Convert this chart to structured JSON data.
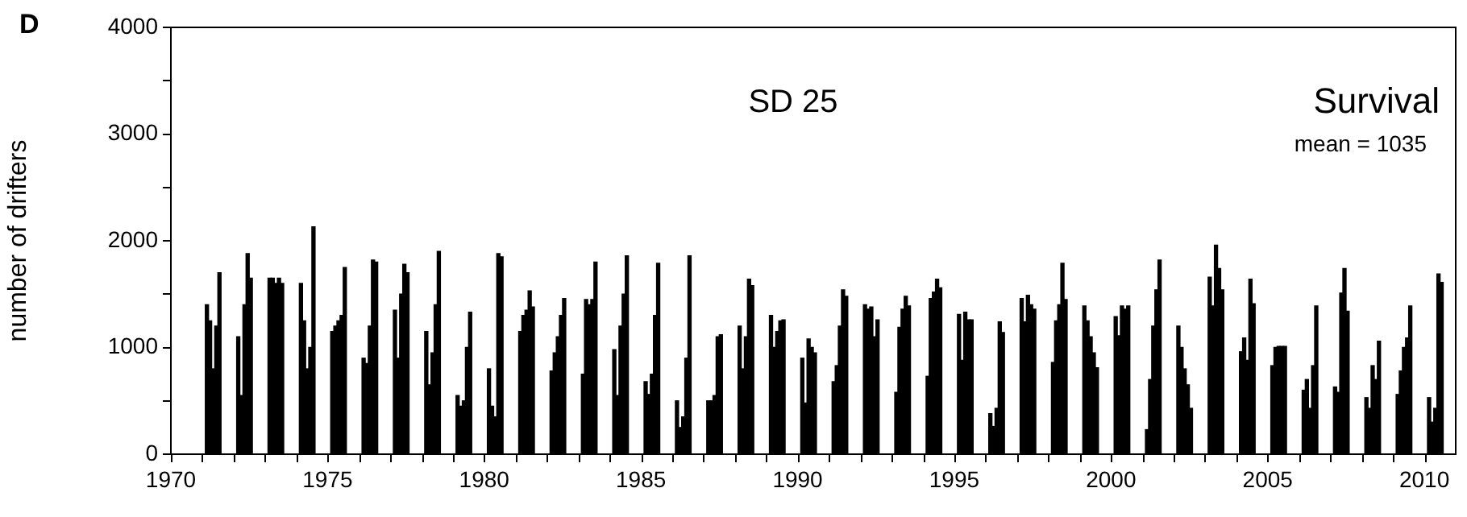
{
  "chart_data": {
    "type": "bar",
    "title": "SD 25",
    "ylabel": "number of drifters",
    "annotations": [
      "D",
      "Survival",
      "mean = 1035"
    ],
    "xlim": [
      1970,
      2011
    ],
    "xticks": [
      1970,
      {
        "value": 1971,
        "label": null
      },
      {
        "value": 1972,
        "label": null
      },
      {
        "value": 1973,
        "label": null
      },
      {
        "value": 1974,
        "label": null
      },
      1975,
      {
        "value": 1976,
        "label": null
      },
      {
        "value": 1977,
        "label": null
      },
      {
        "value": 1978,
        "label": null
      },
      {
        "value": 1979,
        "label": null
      },
      1980,
      {
        "value": 1981,
        "label": null
      },
      {
        "value": 1982,
        "label": null
      },
      {
        "value": 1983,
        "label": null
      },
      {
        "value": 1984,
        "label": null
      },
      1985,
      {
        "value": 1986,
        "label": null
      },
      {
        "value": 1987,
        "label": null
      },
      {
        "value": 1988,
        "label": null
      },
      {
        "value": 1989,
        "label": null
      },
      1990,
      {
        "value": 1991,
        "label": null
      },
      {
        "value": 1992,
        "label": null
      },
      {
        "value": 1993,
        "label": null
      },
      {
        "value": 1994,
        "label": null
      },
      1995,
      {
        "value": 1996,
        "label": null
      },
      {
        "value": 1997,
        "label": null
      },
      {
        "value": 1998,
        "label": null
      },
      {
        "value": 1999,
        "label": null
      },
      2000,
      {
        "value": 2001,
        "label": null
      },
      {
        "value": 2002,
        "label": null
      },
      {
        "value": 2003,
        "label": null
      },
      {
        "value": 2004,
        "label": null
      },
      2005,
      {
        "value": 2006,
        "label": null
      },
      {
        "value": 2007,
        "label": null
      },
      {
        "value": 2008,
        "label": null
      },
      {
        "value": 2009,
        "label": null
      },
      2010
    ],
    "ylim": [
      0,
      4000
    ],
    "yticks": [
      0,
      {
        "value": 500,
        "label": null
      },
      1000,
      {
        "value": 1500,
        "label": null
      },
      2000,
      {
        "value": 2500,
        "label": null
      },
      3000,
      {
        "value": 3500,
        "label": null
      },
      4000
    ],
    "grid": false,
    "legend": false,
    "series": [
      {
        "color": "#000000",
        "x": [
          1971.15,
          1971.25,
          1971.35,
          1971.45,
          1971.55,
          1972.15,
          1972.25,
          1972.35,
          1972.45,
          1972.55,
          1973.15,
          1973.25,
          1973.35,
          1973.45,
          1973.55,
          1974.15,
          1974.25,
          1974.35,
          1974.45,
          1974.55,
          1975.15,
          1975.25,
          1975.35,
          1975.45,
          1975.55,
          1976.15,
          1976.25,
          1976.35,
          1976.45,
          1976.55,
          1977.15,
          1977.25,
          1977.35,
          1977.45,
          1977.55,
          1978.15,
          1978.25,
          1978.35,
          1978.45,
          1978.55,
          1979.15,
          1979.25,
          1979.35,
          1979.45,
          1979.55,
          1980.15,
          1980.25,
          1980.35,
          1980.45,
          1980.55,
          1981.15,
          1981.25,
          1981.35,
          1981.45,
          1981.55,
          1982.15,
          1982.25,
          1982.35,
          1982.45,
          1982.55,
          1983.15,
          1983.25,
          1983.35,
          1983.45,
          1983.55,
          1984.15,
          1984.25,
          1984.35,
          1984.45,
          1984.55,
          1985.15,
          1985.25,
          1985.35,
          1985.45,
          1985.55,
          1986.15,
          1986.25,
          1986.35,
          1986.45,
          1986.55,
          1987.15,
          1987.25,
          1987.35,
          1987.45,
          1987.55,
          1988.15,
          1988.25,
          1988.35,
          1988.45,
          1988.55,
          1989.15,
          1989.25,
          1989.35,
          1989.45,
          1989.55,
          1990.15,
          1990.25,
          1990.35,
          1990.45,
          1990.55,
          1991.15,
          1991.25,
          1991.35,
          1991.45,
          1991.55,
          1992.15,
          1992.25,
          1992.35,
          1992.45,
          1992.55,
          1993.15,
          1993.25,
          1993.35,
          1993.45,
          1993.55,
          1994.15,
          1994.25,
          1994.35,
          1994.45,
          1994.55,
          1995.15,
          1995.25,
          1995.35,
          1995.45,
          1995.55,
          1996.15,
          1996.25,
          1996.35,
          1996.45,
          1996.55,
          1997.15,
          1997.25,
          1997.35,
          1997.45,
          1997.55,
          1998.15,
          1998.25,
          1998.35,
          1998.45,
          1998.55,
          1999.15,
          1999.25,
          1999.35,
          1999.45,
          1999.55,
          2000.15,
          2000.25,
          2000.35,
          2000.45,
          2000.55,
          2001.15,
          2001.25,
          2001.35,
          2001.45,
          2001.55,
          2002.15,
          2002.25,
          2002.35,
          2002.45,
          2002.55,
          2003.15,
          2003.25,
          2003.35,
          2003.45,
          2003.55,
          2004.15,
          2004.25,
          2004.35,
          2004.45,
          2004.55,
          2005.15,
          2005.25,
          2005.35,
          2005.45,
          2005.55,
          2006.15,
          2006.25,
          2006.35,
          2006.45,
          2006.55,
          2007.15,
          2007.25,
          2007.35,
          2007.45,
          2007.55,
          2008.15,
          2008.25,
          2008.35,
          2008.45,
          2008.55,
          2009.15,
          2009.25,
          2009.35,
          2009.45,
          2009.55,
          2010.15,
          2010.25,
          2010.35,
          2010.45,
          2010.55
        ],
        "values": [
          1400,
          1250,
          800,
          1200,
          1700,
          1100,
          550,
          1400,
          1880,
          1650,
          1650,
          1650,
          1600,
          1650,
          1600,
          1600,
          1250,
          800,
          1000,
          2130,
          1150,
          1200,
          1250,
          1300,
          1750,
          900,
          850,
          1200,
          1820,
          1800,
          1350,
          900,
          1500,
          1780,
          1700,
          1150,
          650,
          950,
          1400,
          1900,
          550,
          450,
          500,
          1000,
          1330,
          800,
          450,
          350,
          1880,
          1850,
          1150,
          1300,
          1350,
          1530,
          1380,
          780,
          950,
          1100,
          1300,
          1460,
          750,
          1450,
          1400,
          1450,
          1800,
          980,
          550,
          1200,
          1500,
          1860,
          680,
          560,
          750,
          1300,
          1790,
          500,
          250,
          350,
          900,
          1860,
          500,
          500,
          550,
          1100,
          1120,
          1200,
          800,
          1100,
          1640,
          1580,
          1300,
          1000,
          1150,
          1250,
          1260,
          900,
          480,
          1080,
          1000,
          950,
          680,
          830,
          1200,
          1540,
          1480,
          1400,
          1360,
          1380,
          1100,
          1260,
          580,
          1190,
          1360,
          1480,
          1390,
          730,
          1460,
          1520,
          1640,
          1560,
          1310,
          880,
          1330,
          1260,
          1260,
          380,
          260,
          430,
          1240,
          1140,
          1460,
          1240,
          1490,
          1400,
          1360,
          860,
          1250,
          1400,
          1790,
          1450,
          1390,
          1250,
          1100,
          950,
          810,
          1290,
          1110,
          1390,
          1360,
          1390,
          230,
          700,
          1200,
          1540,
          1820,
          1200,
          1000,
          800,
          650,
          430,
          1660,
          1390,
          1960,
          1740,
          1540,
          960,
          1090,
          880,
          1640,
          1410,
          830,
          1000,
          1010,
          1010,
          1010,
          600,
          700,
          430,
          830,
          1390,
          630,
          580,
          1510,
          1740,
          1340,
          530,
          430,
          830,
          700,
          1060,
          560,
          780,
          1000,
          1090,
          1390,
          530,
          300,
          430,
          1690,
          1610
        ]
      }
    ]
  }
}
